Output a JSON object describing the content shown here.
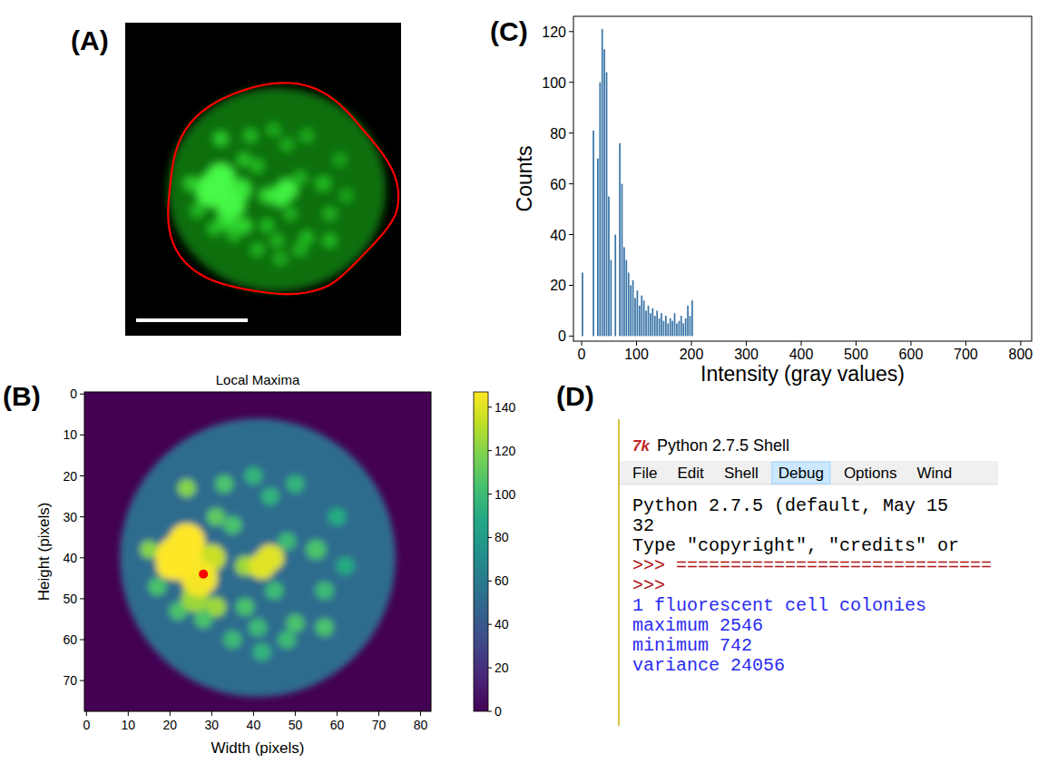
{
  "chart_data": [
    {
      "label": "(A)",
      "type": "image",
      "color": "#ff0000"
    },
    {
      "label": "(B)",
      "type": "heatmap",
      "title": "Local Maxima",
      "x_label": "Width (pixels)",
      "y_label": "Height (pixels)",
      "xlim": [
        -0.5,
        82.5
      ],
      "ylim": [
        77.5,
        -0.5
      ],
      "xticks": [
        0,
        10,
        20,
        30,
        40,
        50,
        60,
        70,
        80
      ],
      "yticks": [
        0,
        10,
        20,
        30,
        40,
        50,
        60,
        70
      ],
      "colorbar_range": [
        0,
        147
      ],
      "colorbar_ticks": [
        0,
        20,
        40,
        60,
        80,
        100,
        120,
        140
      ],
      "background": 0,
      "nucleus": {
        "x": 41,
        "y": 40,
        "rx": 33,
        "ry": 34,
        "value": 52
      },
      "spots": [
        {
          "x": 15,
          "y": 38,
          "size": 2,
          "value": 120
        },
        {
          "x": 24,
          "y": 23,
          "size": 2,
          "value": 120
        },
        {
          "x": 33,
          "y": 22,
          "size": 2,
          "value": 105
        },
        {
          "x": 40,
          "y": 20,
          "size": 2,
          "value": 95
        },
        {
          "x": 50,
          "y": 22,
          "size": 2,
          "value": 95
        },
        {
          "x": 44,
          "y": 25,
          "size": 2,
          "value": 95
        },
        {
          "x": 60,
          "y": 30,
          "size": 2,
          "value": 90
        },
        {
          "x": 31,
          "y": 30,
          "size": 2,
          "value": 110
        },
        {
          "x": 35,
          "y": 32,
          "size": 2,
          "value": 105
        },
        {
          "x": 48,
          "y": 36,
          "size": 2,
          "value": 100
        },
        {
          "x": 55,
          "y": 38,
          "size": 2.2,
          "value": 105
        },
        {
          "x": 62,
          "y": 42,
          "size": 2,
          "value": 90
        },
        {
          "x": 57,
          "y": 48,
          "size": 2,
          "value": 100
        },
        {
          "x": 45,
          "y": 48,
          "size": 2,
          "value": 100
        },
        {
          "x": 38,
          "y": 52,
          "size": 2,
          "value": 105
        },
        {
          "x": 31,
          "y": 52,
          "size": 2.2,
          "value": 125
        },
        {
          "x": 28,
          "y": 55,
          "size": 2,
          "value": 105
        },
        {
          "x": 22,
          "y": 53,
          "size": 2,
          "value": 105
        },
        {
          "x": 17,
          "y": 47,
          "size": 2,
          "value": 105
        },
        {
          "x": 41,
          "y": 57,
          "size": 2,
          "value": 100
        },
        {
          "x": 50,
          "y": 56,
          "size": 2,
          "value": 105
        },
        {
          "x": 48,
          "y": 60,
          "size": 2,
          "value": 100
        },
        {
          "x": 57,
          "y": 57,
          "size": 2,
          "value": 105
        },
        {
          "x": 35,
          "y": 60,
          "size": 2,
          "value": 100
        },
        {
          "x": 42,
          "y": 63,
          "size": 2,
          "value": 95
        },
        {
          "x": 38,
          "y": 42,
          "size": 2.2,
          "value": 125
        },
        {
          "x": 42,
          "y": 42,
          "size": 3,
          "value": 140
        },
        {
          "x": 44,
          "y": 40,
          "size": 3,
          "value": 140
        },
        {
          "x": 26,
          "y": 50,
          "size": 3,
          "value": 125
        },
        {
          "x": 30,
          "y": 40,
          "size": 3,
          "value": 135
        },
        {
          "x": 20,
          "y": 42,
          "size": 3,
          "value": 145
        },
        {
          "x": 27,
          "y": 45,
          "size": 4,
          "value": 145
        },
        {
          "x": 24,
          "y": 36,
          "size": 4,
          "value": 147
        },
        {
          "x": 22,
          "y": 40,
          "size": 5,
          "value": 147
        }
      ],
      "peak": {
        "x": 28,
        "y": 44,
        "color": "#ff0000"
      }
    },
    {
      "label": "(C)",
      "type": "histogram",
      "x_label": "Intensity (gray values)",
      "y_label": "Counts",
      "xlim": [
        -15,
        820
      ],
      "ylim": [
        -2,
        126
      ],
      "xticks": [
        0,
        100,
        200,
        300,
        400,
        500,
        600,
        700,
        800
      ],
      "yticks": [
        0,
        20,
        40,
        60,
        80,
        100,
        120
      ],
      "color": "#3a75a8",
      "bins": [
        0,
        4,
        8,
        12,
        16,
        20,
        24,
        28,
        32,
        36,
        40,
        44,
        48,
        52,
        56,
        60,
        64,
        68,
        72,
        76,
        80,
        84,
        88,
        92,
        96,
        100,
        104,
        108,
        112,
        116,
        120,
        124,
        128,
        132,
        136,
        140,
        144,
        148,
        152,
        156,
        160,
        164,
        168,
        172,
        176,
        180,
        184,
        188,
        192,
        196,
        200,
        204
      ],
      "values": [
        25,
        0,
        0,
        0,
        0,
        81,
        0,
        70,
        100,
        121,
        113,
        104,
        55,
        30,
        0,
        40,
        0,
        76,
        60,
        35,
        30,
        25,
        20,
        22,
        15,
        18,
        12,
        16,
        14,
        10,
        12,
        9,
        11,
        8,
        10,
        7,
        9,
        6,
        8,
        5,
        7,
        6,
        9,
        5,
        6,
        8,
        5,
        7,
        12,
        8,
        14
      ]
    },
    {
      "label": "(D)",
      "type": "screenshot",
      "icon": "7k",
      "title": "Python 2.7.5 Shell",
      "menu": [
        "File",
        "Edit",
        "Shell",
        "Debug",
        "Options",
        "Wind"
      ],
      "menu_selected": "Debug",
      "lines": [
        {
          "text": "Python 2.7.5 (default, May 15",
          "color": "#000000"
        },
        {
          "text": "32",
          "color": "#000000"
        },
        {
          "text": "Type \"copyright\", \"credits\" or",
          "color": "#000000"
        },
        {
          "text": ">>> =============================",
          "color": "#b01010"
        },
        {
          "text": ">>>",
          "color": "#b01010"
        },
        {
          "text": "1 fluorescent cell colonies",
          "color": "#2a2af0"
        },
        {
          "text": "maximum 2546",
          "color": "#2a2af0"
        },
        {
          "text": "minimum 742",
          "color": "#2a2af0"
        },
        {
          "text": "variance 24056",
          "color": "#2a2af0"
        }
      ]
    }
  ]
}
